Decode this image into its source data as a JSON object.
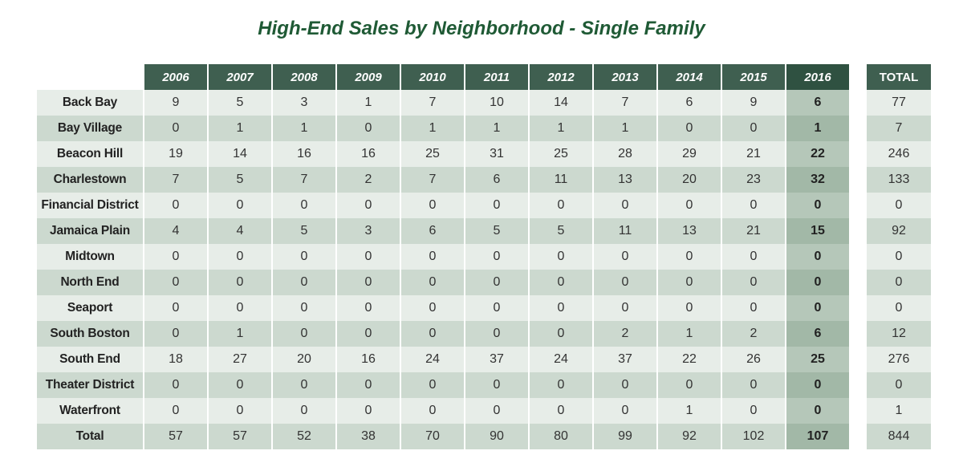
{
  "chart_data": {
    "type": "table",
    "title": "High-End Sales by Neighborhood - Single Family",
    "columns": [
      "2006",
      "2007",
      "2008",
      "2009",
      "2010",
      "2011",
      "2012",
      "2013",
      "2014",
      "2015",
      "2016"
    ],
    "highlight_column": "2016",
    "total_label": "TOTAL",
    "rows": [
      {
        "name": "Back Bay",
        "values": [
          9,
          5,
          3,
          1,
          7,
          10,
          14,
          7,
          6,
          9,
          6
        ],
        "total": 77
      },
      {
        "name": "Bay Village",
        "values": [
          0,
          1,
          1,
          0,
          1,
          1,
          1,
          1,
          0,
          0,
          1
        ],
        "total": 7
      },
      {
        "name": "Beacon Hill",
        "values": [
          19,
          14,
          16,
          16,
          25,
          31,
          25,
          28,
          29,
          21,
          22
        ],
        "total": 246
      },
      {
        "name": "Charlestown",
        "values": [
          7,
          5,
          7,
          2,
          7,
          6,
          11,
          13,
          20,
          23,
          32
        ],
        "total": 133
      },
      {
        "name": "Financial District",
        "values": [
          0,
          0,
          0,
          0,
          0,
          0,
          0,
          0,
          0,
          0,
          0
        ],
        "total": 0
      },
      {
        "name": "Jamaica Plain",
        "values": [
          4,
          4,
          5,
          3,
          6,
          5,
          5,
          11,
          13,
          21,
          15
        ],
        "total": 92
      },
      {
        "name": "Midtown",
        "values": [
          0,
          0,
          0,
          0,
          0,
          0,
          0,
          0,
          0,
          0,
          0
        ],
        "total": 0
      },
      {
        "name": "North End",
        "values": [
          0,
          0,
          0,
          0,
          0,
          0,
          0,
          0,
          0,
          0,
          0
        ],
        "total": 0
      },
      {
        "name": "Seaport",
        "values": [
          0,
          0,
          0,
          0,
          0,
          0,
          0,
          0,
          0,
          0,
          0
        ],
        "total": 0
      },
      {
        "name": "South Boston",
        "values": [
          0,
          1,
          0,
          0,
          0,
          0,
          0,
          2,
          1,
          2,
          6
        ],
        "total": 12
      },
      {
        "name": "South End",
        "values": [
          18,
          27,
          20,
          16,
          24,
          37,
          24,
          37,
          22,
          26,
          25
        ],
        "total": 276
      },
      {
        "name": "Theater District",
        "values": [
          0,
          0,
          0,
          0,
          0,
          0,
          0,
          0,
          0,
          0,
          0
        ],
        "total": 0
      },
      {
        "name": "Waterfront",
        "values": [
          0,
          0,
          0,
          0,
          0,
          0,
          0,
          0,
          1,
          0,
          0
        ],
        "total": 1
      },
      {
        "name": "Total",
        "values": [
          57,
          57,
          52,
          38,
          70,
          90,
          80,
          99,
          92,
          102,
          107
        ],
        "total": 844
      }
    ]
  },
  "colors": {
    "title": "#1f5a35",
    "header": "#3f5f50",
    "header_highlight": "#2f5141",
    "row_light": "#e7ede8",
    "row_dark": "#ccd9cf"
  }
}
